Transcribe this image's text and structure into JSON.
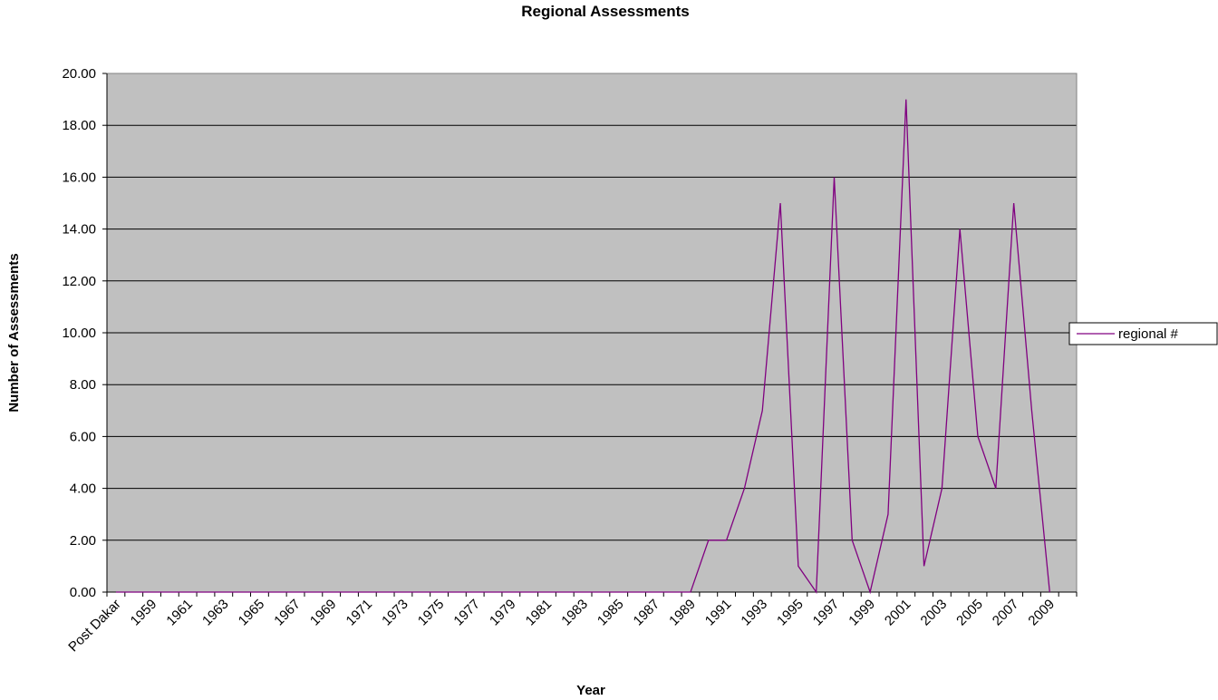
{
  "chart_data": {
    "type": "line",
    "title": "Regional Assessments",
    "x_label": "Year",
    "y_label": "Number of Assessments",
    "categories": [
      "Post Dakar",
      null,
      "1959",
      null,
      "1961",
      null,
      "1963",
      null,
      "1965",
      null,
      "1967",
      null,
      "1969",
      null,
      "1971",
      null,
      "1973",
      null,
      "1975",
      null,
      "1977",
      null,
      "1979",
      null,
      "1981",
      null,
      "1983",
      null,
      "1985",
      null,
      "1987",
      null,
      "1989",
      null,
      "1991",
      null,
      "1993",
      null,
      "1995",
      null,
      "1997",
      null,
      "1999",
      null,
      "2001",
      null,
      "2003",
      null,
      "2005",
      null,
      "2007",
      null,
      "2009",
      null
    ],
    "series": [
      {
        "name": "regional #",
        "color": "#800080",
        "values": [
          0,
          0,
          0,
          0,
          0,
          0,
          0,
          0,
          0,
          0,
          0,
          0,
          0,
          0,
          0,
          0,
          0,
          0,
          0,
          0,
          0,
          0,
          0,
          0,
          0,
          0,
          0,
          0,
          0,
          0,
          0,
          0,
          0,
          2,
          2,
          4,
          7,
          15,
          1,
          0,
          16,
          2,
          0,
          3,
          19,
          1,
          4,
          14,
          6,
          4,
          15,
          7,
          0,
          null
        ]
      }
    ],
    "ylim": [
      0,
      20
    ],
    "yticks": [
      {
        "value": 0,
        "label": "0.00"
      },
      {
        "value": 2,
        "label": "2.00"
      },
      {
        "value": 4,
        "label": "4.00"
      },
      {
        "value": 6,
        "label": "6.00"
      },
      {
        "value": 8,
        "label": "8.00"
      },
      {
        "value": 10,
        "label": "10.00"
      },
      {
        "value": 12,
        "label": "12.00"
      },
      {
        "value": 14,
        "label": "14.00"
      },
      {
        "value": 16,
        "label": "16.00"
      },
      {
        "value": 18,
        "label": "18.00"
      },
      {
        "value": 20,
        "label": "20.00"
      }
    ],
    "grid": true,
    "legend": "right"
  }
}
